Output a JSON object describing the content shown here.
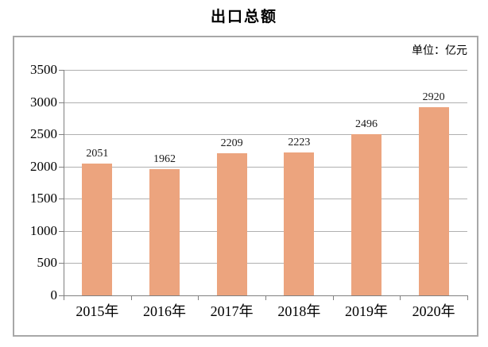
{
  "chart_data": {
    "type": "bar",
    "title": "出口总额",
    "unit_label": "单位：亿元",
    "categories": [
      "2015年",
      "2016年",
      "2017年",
      "2018年",
      "2019年",
      "2020年"
    ],
    "values": [
      2051,
      1962,
      2209,
      2223,
      2496,
      2920
    ],
    "bar_value_labels": [
      "2051",
      "1962",
      "2209",
      "2223",
      "2496",
      "2920"
    ],
    "xlabel": "",
    "ylabel": "",
    "ylim": [
      0,
      3500
    ],
    "ytick_step": 500,
    "yticks": [
      0,
      500,
      1000,
      1500,
      2000,
      2500,
      3000,
      3500
    ],
    "grid": "horizontal",
    "legend": "none",
    "colors": {
      "bar_fill": "#eca47e",
      "gridline": "#b0b0b0",
      "axis": "#808080",
      "outer_border": "#a8a8a8",
      "text": "#000000"
    }
  }
}
